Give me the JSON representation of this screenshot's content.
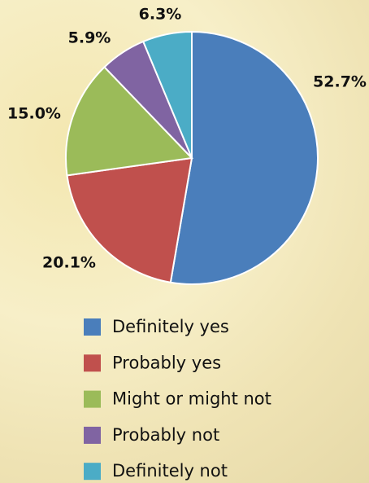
{
  "chart_data": {
    "type": "pie",
    "categories": [
      "Definitely yes",
      "Probably yes",
      "Might or might not",
      "Probably not",
      "Definitely not"
    ],
    "values": [
      52.7,
      20.1,
      15.0,
      5.9,
      6.3
    ],
    "value_labels": [
      "52.7%",
      "20.1%",
      "15.0%",
      "5.9%",
      "6.3%"
    ],
    "colors": [
      "#4a7ebb",
      "#c0504d",
      "#9bbb59",
      "#8064a2",
      "#4bacc6"
    ],
    "legend": "bottom"
  }
}
